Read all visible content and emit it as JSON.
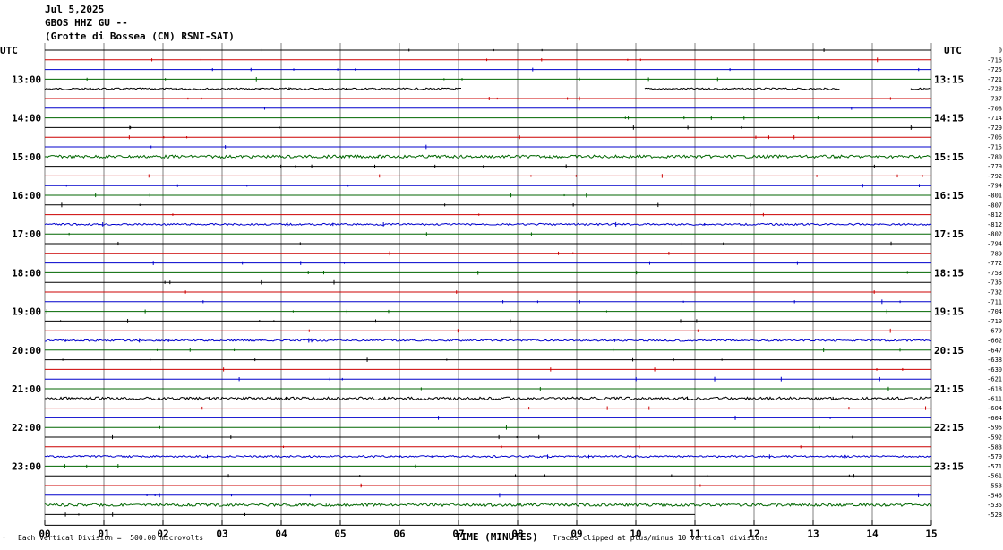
{
  "header": {
    "date": "Jul 5,2025",
    "station": "GBOS HHZ GU --",
    "location": "(Grotte di Bossea (CN) RSNI-SAT)"
  },
  "footer": {
    "corner_mark": "↑",
    "scale_note": "Each Vertical Division =  500.00 microvolts",
    "clip_note": "Traces clipped at plus/minus 10 vertical divisions"
  },
  "colors": {
    "black": "#000000",
    "red": "#cc0000",
    "blue": "#0000cc",
    "green": "#006600",
    "grid": "#808080"
  },
  "chart_data": {
    "type": "line",
    "xlabel": "TIME (MINUTES)",
    "x_ticks": [
      "00",
      "01",
      "02",
      "03",
      "04",
      "05",
      "06",
      "07",
      "08",
      "09",
      "10",
      "11",
      "12",
      "13",
      "14",
      "15"
    ],
    "xlim": [
      0,
      15
    ],
    "left_axis_label": "UTC",
    "right_axis_label": "UTC",
    "left_hour_labels": [
      "13:00",
      "14:00",
      "15:00",
      "16:00",
      "17:00",
      "18:00",
      "19:00",
      "20:00",
      "21:00",
      "22:00",
      "23:00"
    ],
    "right_hour_labels": [
      "13:15",
      "14:15",
      "15:15",
      "16:15",
      "17:15",
      "18:15",
      "19:15",
      "20:15",
      "21:15",
      "22:15",
      "23:15"
    ],
    "first_trace_hour": 12,
    "first_trace_quarter": 1,
    "trace_color_cycle": [
      "black",
      "red",
      "blue",
      "green"
    ],
    "last_trace_end_minute": 11,
    "offset_values": [
      "0",
      "-716",
      "-725",
      "-721",
      "-728",
      "-737",
      "-708",
      "-714",
      "-729",
      "-706",
      "-715",
      "-780",
      "-779",
      "-792",
      "-794",
      "-801",
      "-807",
      "-812",
      "-812",
      "-802",
      "-794",
      "-789",
      "-772",
      "-753",
      "-735",
      "-732",
      "-711",
      "-704",
      "-710",
      "-679",
      "-662",
      "-647",
      "-638",
      "-630",
      "-621",
      "-618",
      "-611",
      "-604",
      "-604",
      "-596",
      "-592",
      "-583",
      "-579",
      "-571",
      "-561",
      "-553",
      "-546",
      "-535",
      "-528"
    ],
    "gaps": [
      {
        "trace": 4,
        "from_minute": 7.05,
        "to_minute": 10.15
      },
      {
        "trace": 4,
        "from_minute": 13.45,
        "to_minute": 14.65
      }
    ],
    "noise_traces": [
      4,
      11,
      18,
      30,
      36,
      42,
      47
    ],
    "big_noise_traces": [
      11,
      36,
      47
    ]
  }
}
